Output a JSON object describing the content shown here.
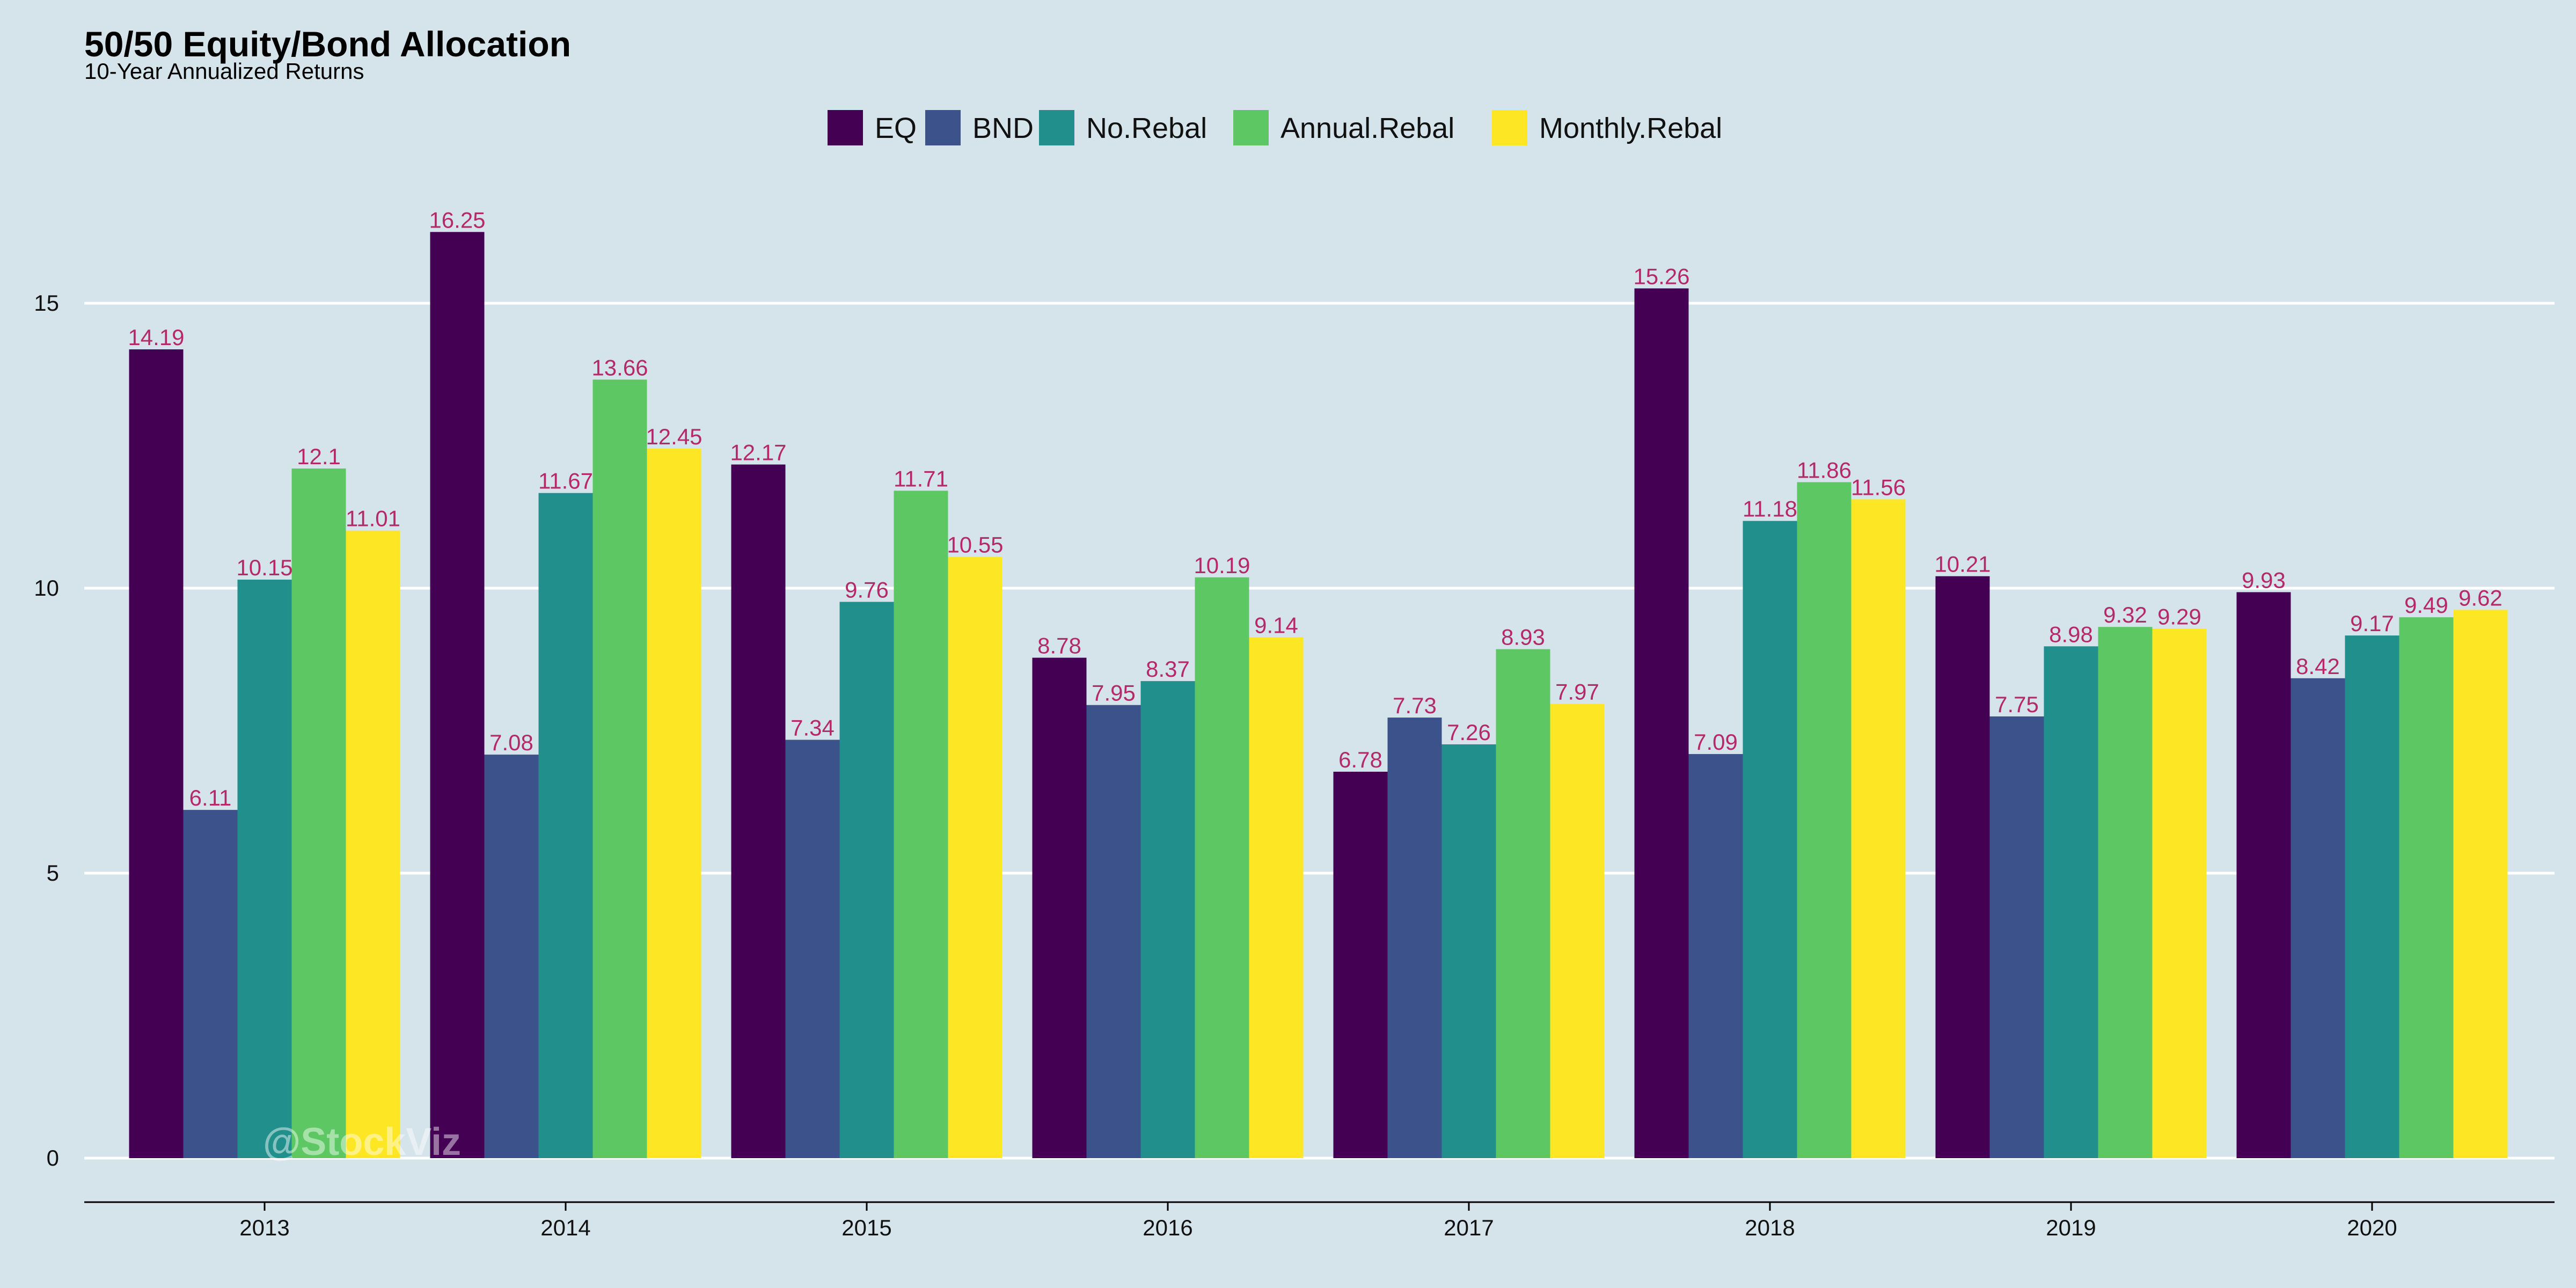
{
  "chart_data": {
    "type": "bar",
    "title": "50/50 Equity/Bond Allocation",
    "subtitle": "10-Year Annualized Returns",
    "xlabel": "",
    "ylabel": "",
    "categories": [
      "2013",
      "2014",
      "2015",
      "2016",
      "2017",
      "2018",
      "2019",
      "2020"
    ],
    "series": [
      {
        "name": "EQ",
        "color": "#440154",
        "values": [
          14.19,
          16.25,
          12.17,
          8.78,
          6.78,
          15.26,
          10.21,
          9.93
        ]
      },
      {
        "name": "BND",
        "color": "#3b528b",
        "values": [
          6.11,
          7.08,
          7.34,
          7.95,
          7.73,
          7.09,
          7.75,
          8.42
        ]
      },
      {
        "name": "No.Rebal",
        "color": "#21908c",
        "values": [
          10.15,
          11.67,
          9.76,
          8.37,
          7.26,
          11.18,
          8.98,
          9.17
        ]
      },
      {
        "name": "Annual.Rebal",
        "color": "#5dc863",
        "values": [
          12.1,
          13.66,
          11.71,
          10.19,
          8.93,
          11.86,
          9.32,
          9.49
        ]
      },
      {
        "name": "Monthly.Rebal",
        "color": "#fde725",
        "values": [
          11.01,
          12.45,
          10.55,
          9.14,
          7.97,
          11.56,
          9.29,
          9.62
        ]
      }
    ],
    "yticks": [
      0,
      5,
      10,
      15
    ],
    "ylim": [
      0,
      16.25
    ],
    "grid": true,
    "legend_position": "top",
    "label_color": "#b5296b",
    "background": "#d5e4eb"
  },
  "watermark": "@StockViz"
}
